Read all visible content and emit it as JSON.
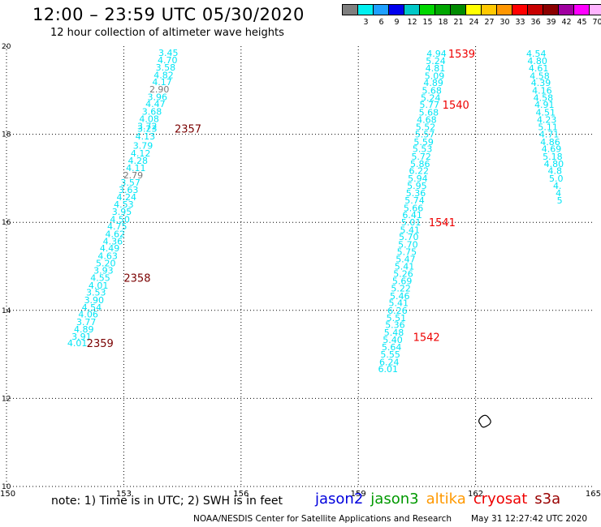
{
  "header": {
    "title": "12:00 – 23:59 UTC 05/30/2020",
    "subtitle": "12 hour collection of altimeter wave heights"
  },
  "color_scale": {
    "unit": "(ft)",
    "swatches": [
      {
        "color": "#7f7f7f",
        "label": ""
      },
      {
        "color": "#00f0f0",
        "label": "3"
      },
      {
        "color": "#1ea0ff",
        "label": "6"
      },
      {
        "color": "#0000ee",
        "label": "9"
      },
      {
        "color": "#00c8c8",
        "label": "12"
      },
      {
        "color": "#00d700",
        "label": "15"
      },
      {
        "color": "#00a600",
        "label": "18"
      },
      {
        "color": "#008a00",
        "label": "21"
      },
      {
        "color": "#ffff00",
        "label": "24"
      },
      {
        "color": "#ffc800",
        "label": "27"
      },
      {
        "color": "#ff9600",
        "label": "30"
      },
      {
        "color": "#ff0000",
        "label": "33"
      },
      {
        "color": "#c80000",
        "label": "36"
      },
      {
        "color": "#8b0000",
        "label": "39"
      },
      {
        "color": "#a000a0",
        "label": "42"
      },
      {
        "color": "#ff00ff",
        "label": "45"
      },
      {
        "color": "#ffb4ff",
        "label": "70"
      },
      {
        "color": "#000000",
        "label": ""
      }
    ]
  },
  "footer": {
    "note": "note: 1) Time is in UTC; 2) SWH is in feet",
    "legend": [
      {
        "name": "jason2",
        "color": "#0000dd"
      },
      {
        "name": "jason3",
        "color": "#009900"
      },
      {
        "name": "altika",
        "color": "#ff9900"
      },
      {
        "name": "cryosat",
        "color": "#ee0000"
      },
      {
        "name": "s3a",
        "color": "#990000"
      }
    ],
    "credit": "NOAA/NESDIS Center for Satellite Applications and Research",
    "timestamp": "May 31 12:27:42 UTC 2020"
  },
  "chart_data": {
    "type": "scatter",
    "xlim": [
      150,
      165
    ],
    "ylim": [
      10,
      20
    ],
    "x_ticks": [
      "150",
      "153",
      "156",
      "159",
      "162",
      "165"
    ],
    "y_ticks": [
      "10",
      "12",
      "14",
      "16",
      "18",
      "20"
    ],
    "grid": true,
    "value_color": "#00e5f5",
    "low_value_color": "#777777",
    "pass_label_color": "#7a0000",
    "pass_label_color_alt": "#ee0000",
    "tracks": [
      {
        "name": "track-west",
        "points": [
          {
            "x": 154.14,
            "y": 19.85,
            "v": "3.45"
          },
          {
            "x": 154.12,
            "y": 19.69,
            "v": "4.70"
          },
          {
            "x": 154.07,
            "y": 19.52,
            "v": "3.58"
          },
          {
            "x": 154.02,
            "y": 19.35,
            "v": "4.82"
          },
          {
            "x": 153.98,
            "y": 19.19,
            "v": "4.17"
          },
          {
            "x": 153.91,
            "y": 19.02,
            "v": "2.90"
          },
          {
            "x": 153.86,
            "y": 18.85,
            "v": "3.96"
          },
          {
            "x": 153.81,
            "y": 18.69,
            "v": "4.47"
          },
          {
            "x": 153.72,
            "y": 18.52,
            "v": "3.68"
          },
          {
            "x": 153.65,
            "y": 18.35,
            "v": "4.08"
          },
          {
            "x": 153.6,
            "y": 18.19,
            "v": "3.72"
          },
          {
            "x": 153.6,
            "y": 18.13,
            "v": "3.23"
          },
          {
            "x": 153.55,
            "y": 17.96,
            "v": "4.13"
          },
          {
            "x": 153.49,
            "y": 17.74,
            "v": "3.79"
          },
          {
            "x": 153.43,
            "y": 17.57,
            "v": "4.12"
          },
          {
            "x": 153.36,
            "y": 17.4,
            "v": "4.28"
          },
          {
            "x": 153.31,
            "y": 17.24,
            "v": "4.11"
          },
          {
            "x": 153.24,
            "y": 17.07,
            "v": "2.79"
          },
          {
            "x": 153.17,
            "y": 16.91,
            "v": "3.57"
          },
          {
            "x": 153.12,
            "y": 16.74,
            "v": "3.63"
          },
          {
            "x": 153.07,
            "y": 16.57,
            "v": "4.24"
          },
          {
            "x": 153.0,
            "y": 16.41,
            "v": "4.53"
          },
          {
            "x": 152.95,
            "y": 16.24,
            "v": "3.95"
          },
          {
            "x": 152.9,
            "y": 16.07,
            "v": "4.50"
          },
          {
            "x": 152.83,
            "y": 15.91,
            "v": "4.75"
          },
          {
            "x": 152.78,
            "y": 15.74,
            "v": "4.62"
          },
          {
            "x": 152.72,
            "y": 15.57,
            "v": "4.36"
          },
          {
            "x": 152.64,
            "y": 15.41,
            "v": "4.49"
          },
          {
            "x": 152.59,
            "y": 15.24,
            "v": "4.63"
          },
          {
            "x": 152.54,
            "y": 15.07,
            "v": "5.20"
          },
          {
            "x": 152.48,
            "y": 14.91,
            "v": "3.93"
          },
          {
            "x": 152.4,
            "y": 14.74,
            "v": "4.55"
          },
          {
            "x": 152.35,
            "y": 14.57,
            "v": "4.01"
          },
          {
            "x": 152.29,
            "y": 14.41,
            "v": "3.53"
          },
          {
            "x": 152.24,
            "y": 14.24,
            "v": "3.90"
          },
          {
            "x": 152.18,
            "y": 14.07,
            "v": "4.54"
          },
          {
            "x": 152.09,
            "y": 13.91,
            "v": "4.06"
          },
          {
            "x": 152.04,
            "y": 13.74,
            "v": "3.77"
          },
          {
            "x": 151.98,
            "y": 13.57,
            "v": "4.89"
          },
          {
            "x": 151.92,
            "y": 13.41,
            "v": "3.91"
          },
          {
            "x": 151.81,
            "y": 13.26,
            "v": "4.01"
          }
        ]
      },
      {
        "name": "track-middle",
        "points": [
          {
            "x": 161.0,
            "y": 19.83,
            "v": "4.94"
          },
          {
            "x": 160.98,
            "y": 19.67,
            "v": "5.24"
          },
          {
            "x": 160.97,
            "y": 19.5,
            "v": "4.81"
          },
          {
            "x": 160.95,
            "y": 19.33,
            "v": "5.09"
          },
          {
            "x": 160.92,
            "y": 19.17,
            "v": "4.89"
          },
          {
            "x": 160.88,
            "y": 19.0,
            "v": "5.68"
          },
          {
            "x": 160.85,
            "y": 18.83,
            "v": "5.24"
          },
          {
            "x": 160.82,
            "y": 18.67,
            "v": "5.77"
          },
          {
            "x": 160.8,
            "y": 18.5,
            "v": "5.68"
          },
          {
            "x": 160.75,
            "y": 18.33,
            "v": "4.68"
          },
          {
            "x": 160.72,
            "y": 18.17,
            "v": "5.52"
          },
          {
            "x": 160.7,
            "y": 18.0,
            "v": "5.57"
          },
          {
            "x": 160.67,
            "y": 17.83,
            "v": "5.59"
          },
          {
            "x": 160.64,
            "y": 17.67,
            "v": "5.53"
          },
          {
            "x": 160.61,
            "y": 17.5,
            "v": "5.72"
          },
          {
            "x": 160.58,
            "y": 17.33,
            "v": "5.86"
          },
          {
            "x": 160.55,
            "y": 17.17,
            "v": "6.22"
          },
          {
            "x": 160.52,
            "y": 17.0,
            "v": "5.94"
          },
          {
            "x": 160.5,
            "y": 16.83,
            "v": "5.95"
          },
          {
            "x": 160.47,
            "y": 16.67,
            "v": "5.36"
          },
          {
            "x": 160.44,
            "y": 16.5,
            "v": "5.74"
          },
          {
            "x": 160.41,
            "y": 16.33,
            "v": "5.66"
          },
          {
            "x": 160.38,
            "y": 16.17,
            "v": "6.41"
          },
          {
            "x": 160.35,
            "y": 16.0,
            "v": "5.01"
          },
          {
            "x": 160.32,
            "y": 15.83,
            "v": "5.41"
          },
          {
            "x": 160.29,
            "y": 15.67,
            "v": "5.70"
          },
          {
            "x": 160.27,
            "y": 15.5,
            "v": "5.70"
          },
          {
            "x": 160.24,
            "y": 15.33,
            "v": "5.75"
          },
          {
            "x": 160.21,
            "y": 15.17,
            "v": "5.47"
          },
          {
            "x": 160.18,
            "y": 15.0,
            "v": "5.41"
          },
          {
            "x": 160.15,
            "y": 14.83,
            "v": "5.26"
          },
          {
            "x": 160.12,
            "y": 14.67,
            "v": "5.69"
          },
          {
            "x": 160.09,
            "y": 14.5,
            "v": "5.22"
          },
          {
            "x": 160.06,
            "y": 14.33,
            "v": "5.46"
          },
          {
            "x": 160.03,
            "y": 14.17,
            "v": "5.41"
          },
          {
            "x": 160.0,
            "y": 14.0,
            "v": "6.26"
          },
          {
            "x": 159.97,
            "y": 13.83,
            "v": "5.51"
          },
          {
            "x": 159.94,
            "y": 13.67,
            "v": "5.36"
          },
          {
            "x": 159.91,
            "y": 13.5,
            "v": "5.48"
          },
          {
            "x": 159.88,
            "y": 13.33,
            "v": "5.40"
          },
          {
            "x": 159.85,
            "y": 13.17,
            "v": "5.64"
          },
          {
            "x": 159.82,
            "y": 13.0,
            "v": "5.55"
          },
          {
            "x": 159.79,
            "y": 12.83,
            "v": "6.24"
          },
          {
            "x": 159.76,
            "y": 12.67,
            "v": "6.01"
          }
        ]
      },
      {
        "name": "track-east",
        "points": [
          {
            "x": 163.55,
            "y": 19.83,
            "v": "4.54"
          },
          {
            "x": 163.58,
            "y": 19.67,
            "v": "4.80"
          },
          {
            "x": 163.61,
            "y": 19.5,
            "v": "4.61"
          },
          {
            "x": 163.64,
            "y": 19.33,
            "v": "4.58"
          },
          {
            "x": 163.67,
            "y": 19.17,
            "v": "4.39"
          },
          {
            "x": 163.7,
            "y": 19.0,
            "v": "4.16"
          },
          {
            "x": 163.73,
            "y": 18.83,
            "v": "4.58"
          },
          {
            "x": 163.76,
            "y": 18.67,
            "v": "4.91"
          },
          {
            "x": 163.79,
            "y": 18.5,
            "v": "4.51"
          },
          {
            "x": 163.82,
            "y": 18.33,
            "v": "4.23"
          },
          {
            "x": 163.85,
            "y": 18.17,
            "v": "5.11"
          },
          {
            "x": 163.88,
            "y": 18.0,
            "v": "4.71"
          },
          {
            "x": 163.91,
            "y": 17.83,
            "v": "4.86"
          },
          {
            "x": 163.94,
            "y": 17.67,
            "v": "4.69"
          },
          {
            "x": 163.97,
            "y": 17.5,
            "v": "5.18"
          },
          {
            "x": 164.0,
            "y": 17.33,
            "v": "4.80"
          },
          {
            "x": 164.03,
            "y": 17.17,
            "v": "4.8"
          },
          {
            "x": 164.06,
            "y": 17.0,
            "v": "5.0"
          },
          {
            "x": 164.09,
            "y": 16.83,
            "v": "4."
          },
          {
            "x": 164.12,
            "y": 16.67,
            "v": "4"
          },
          {
            "x": 164.15,
            "y": 16.5,
            "v": "5"
          }
        ]
      }
    ],
    "pass_labels": [
      {
        "x": 154.3,
        "y": 18.13,
        "text": "2357",
        "alt": false
      },
      {
        "x": 153.0,
        "y": 14.74,
        "text": "2358",
        "alt": false
      },
      {
        "x": 152.05,
        "y": 13.26,
        "text": "2359",
        "alt": false
      },
      {
        "x": 161.3,
        "y": 19.83,
        "text": "1539",
        "alt": true
      },
      {
        "x": 161.15,
        "y": 18.67,
        "text": "1540",
        "alt": true
      },
      {
        "x": 160.8,
        "y": 16.0,
        "text": "1541",
        "alt": true
      },
      {
        "x": 160.4,
        "y": 13.4,
        "text": "1542",
        "alt": true
      }
    ]
  }
}
